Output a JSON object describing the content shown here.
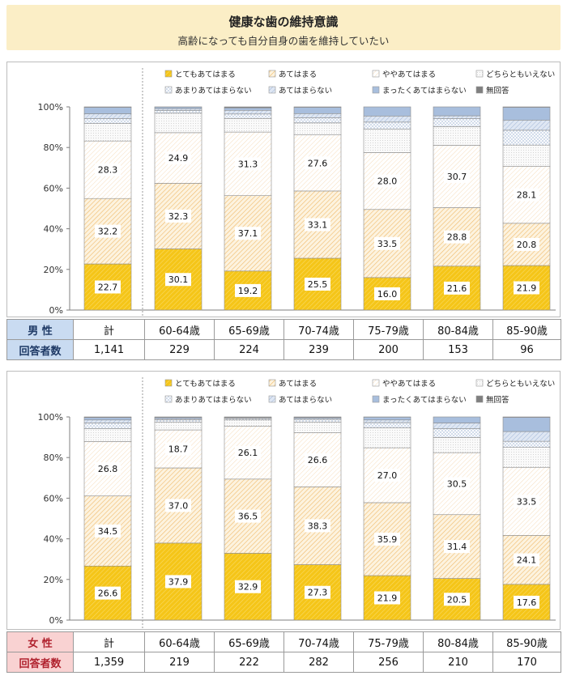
{
  "title": "健康な歯の維持意識",
  "subtitle": "高齢になっても自分自身の歯を維持していたい",
  "legend_items": [
    {
      "label": "とてもあてはまる",
      "color": "#f5c518"
    },
    {
      "label": "あてはまる",
      "color": "#f3c47a"
    },
    {
      "label": "ややあてはまる",
      "color": "#fdf0e0"
    },
    {
      "label": "どちらともいえない",
      "color": "#f0f0f0"
    },
    {
      "label": "あまりあてはまらない",
      "color": "#ffffff"
    },
    {
      "label": "あてはまらない",
      "color": "#c5d5ea"
    },
    {
      "label": "まったくあてはまらない",
      "color": "#a8bedd"
    },
    {
      "label": "無回答",
      "color": "#7f7f7f"
    }
  ],
  "categories": [
    "計",
    "60-64歳",
    "65-69歳",
    "70-74歳",
    "75-79歳",
    "80-84歳",
    "85-90歳"
  ],
  "y_ticks": [
    "0%",
    "20%",
    "40%",
    "60%",
    "80%",
    "100%"
  ],
  "chart_data": [
    {
      "type": "bar",
      "stacked": true,
      "group_label": "男 性",
      "respondents_label": "回答者数",
      "respondents": [
        "1,141",
        "229",
        "224",
        "239",
        "200",
        "153",
        "96"
      ],
      "ylim": [
        0,
        100
      ],
      "series": [
        {
          "name": "とてもあてはまる",
          "values": [
            22.7,
            30.1,
            19.2,
            25.5,
            16.0,
            21.6,
            21.9
          ],
          "labels": [
            "22.7",
            "30.1",
            "19.2",
            "25.5",
            "16.0",
            "21.6",
            "21.9"
          ]
        },
        {
          "name": "あてはまる",
          "values": [
            32.2,
            32.3,
            37.1,
            33.1,
            33.5,
            28.8,
            20.8
          ],
          "labels": [
            "32.2",
            "32.3",
            "37.1",
            "33.1",
            "33.5",
            "28.8",
            "20.8"
          ]
        },
        {
          "name": "ややあてはまる",
          "values": [
            28.3,
            24.9,
            31.3,
            27.6,
            28.0,
            30.7,
            28.1
          ],
          "labels": [
            "28.3",
            "24.9",
            "31.3",
            "27.6",
            "28.0",
            "30.7",
            "28.1"
          ]
        },
        {
          "name": "どちらともいえない",
          "values": [
            8.6,
            9.6,
            6.7,
            5.9,
            11.5,
            9.2,
            10.4
          ]
        },
        {
          "name": "あまりあてはまらない",
          "values": [
            2.4,
            1.3,
            2.2,
            2.5,
            3.5,
            3.9,
            7.3
          ]
        },
        {
          "name": "あてはまらない",
          "values": [
            2.4,
            0.9,
            1.8,
            2.1,
            3.0,
            1.4,
            5.0
          ]
        },
        {
          "name": "まったくあてはまらない",
          "values": [
            3.2,
            0.8,
            1.2,
            3.1,
            4.5,
            4.4,
            6.3
          ]
        },
        {
          "name": "無回答",
          "values": [
            0.2,
            0.1,
            0.5,
            0.2,
            0.0,
            0.0,
            0.2
          ]
        }
      ]
    },
    {
      "type": "bar",
      "stacked": true,
      "group_label": "女 性",
      "respondents_label": "回答者数",
      "respondents": [
        "1,359",
        "219",
        "222",
        "282",
        "256",
        "210",
        "170"
      ],
      "ylim": [
        0,
        100
      ],
      "series": [
        {
          "name": "とてもあてはまる",
          "values": [
            26.6,
            37.9,
            32.9,
            27.3,
            21.9,
            20.5,
            17.6
          ],
          "labels": [
            "26.6",
            "37.9",
            "32.9",
            "27.3",
            "21.9",
            "20.5",
            "17.6"
          ]
        },
        {
          "name": "あてはまる",
          "values": [
            34.5,
            37.0,
            36.5,
            38.3,
            35.9,
            31.4,
            24.1
          ],
          "labels": [
            "34.5",
            "37.0",
            "36.5",
            "38.3",
            "35.9",
            "31.4",
            "24.1"
          ]
        },
        {
          "name": "ややあてはまる",
          "values": [
            26.8,
            18.7,
            26.1,
            26.6,
            27.0,
            30.5,
            33.5
          ],
          "labels": [
            "26.8",
            "18.7",
            "26.1",
            "26.6",
            "27.0",
            "30.5",
            "33.5"
          ]
        },
        {
          "name": "どちらともいえない",
          "values": [
            6.3,
            3.9,
            3.0,
            5.3,
            9.8,
            7.5,
            9.8
          ]
        },
        {
          "name": "あまりあてはまらない",
          "values": [
            2.8,
            1.0,
            0.7,
            1.3,
            2.6,
            4.3,
            3.0
          ]
        },
        {
          "name": "あてはまらない",
          "values": [
            1.5,
            0.6,
            0.4,
            0.5,
            1.3,
            2.8,
            4.8
          ]
        },
        {
          "name": "まったくあてはまらない",
          "values": [
            1.2,
            0.6,
            0.2,
            0.5,
            1.4,
            3.0,
            7.0
          ]
        },
        {
          "name": "無回答",
          "values": [
            0.3,
            0.3,
            0.2,
            0.2,
            0.1,
            0.0,
            0.2
          ]
        }
      ]
    }
  ]
}
